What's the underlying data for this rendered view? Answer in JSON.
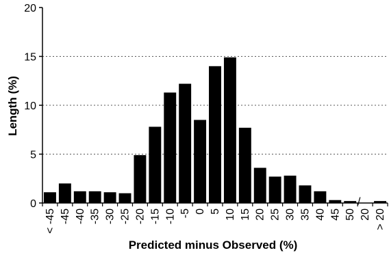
{
  "chart_data": {
    "type": "bar",
    "title": "",
    "xlabel": "Predicted minus Observed (%)",
    "ylabel": "Length (%)",
    "ylim": [
      0,
      20
    ],
    "yticks": [
      "0",
      "5",
      "10",
      "15",
      "20"
    ],
    "grid": "horizontal dotted at 5, 10, 15",
    "categories": [
      "< -45",
      "-45",
      "-40",
      "-35",
      "-30",
      "-25",
      "-20",
      "-15",
      "-10",
      "-5",
      "0",
      "5",
      "10",
      "15",
      "20",
      "25",
      "30",
      "35",
      "40",
      "45",
      "50",
      "20",
      "> 20"
    ],
    "values": [
      1.1,
      2.0,
      1.2,
      1.2,
      1.1,
      1.0,
      4.9,
      7.8,
      11.3,
      12.2,
      8.5,
      14.0,
      14.9,
      7.7,
      3.6,
      2.7,
      2.8,
      1.8,
      1.2,
      0.3,
      0.2,
      0.0,
      0.2
    ],
    "bar_color": "#000000",
    "axis_break": "/"
  }
}
